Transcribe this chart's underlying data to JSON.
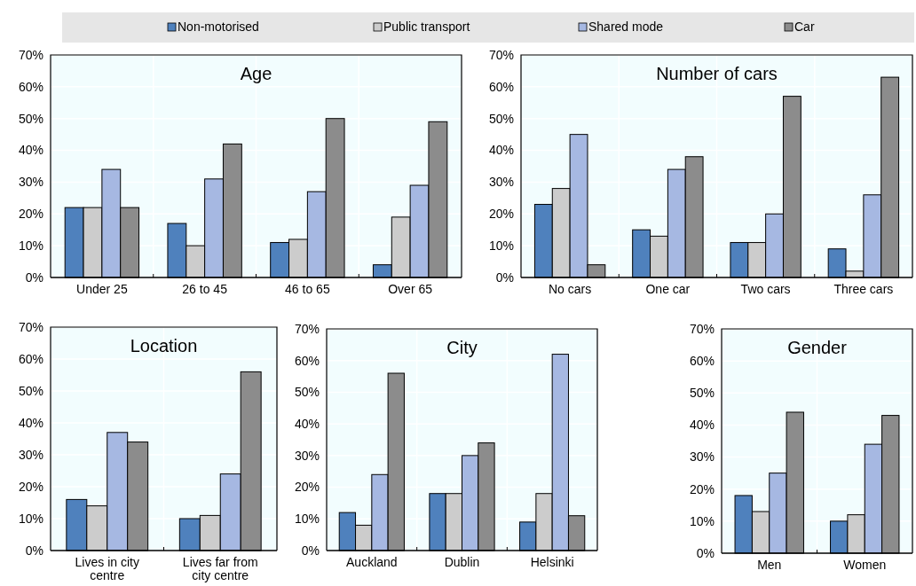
{
  "chart_data": [
    {
      "type": "bar",
      "title": "Age",
      "categories": [
        "Under 25",
        "26 to 45",
        "46 to 65",
        "Over 65"
      ],
      "legend": "top",
      "grid": true,
      "ylim": [
        0,
        70
      ],
      "yticks": [
        {
          "value": 0,
          "label": "0%"
        },
        {
          "value": 10,
          "label": "10%"
        },
        {
          "value": 20,
          "label": "20%"
        },
        {
          "value": 30,
          "label": "30%"
        },
        {
          "value": 40,
          "label": "40%"
        },
        {
          "value": 50,
          "label": "50%"
        },
        {
          "value": 60,
          "label": "60%"
        },
        {
          "value": 70,
          "label": "70%"
        }
      ],
      "series": [
        {
          "name": "Non-motorised",
          "color": "#4f81bd",
          "values": [
            22,
            17,
            11,
            4
          ]
        },
        {
          "name": "Public transport",
          "color": "#cccccc",
          "values": [
            22,
            10,
            12,
            19
          ]
        },
        {
          "name": "Shared mode",
          "color": "#a6b8e2",
          "values": [
            34,
            31,
            27,
            29
          ]
        },
        {
          "name": "Car",
          "color": "#8c8c8c",
          "values": [
            22,
            42,
            50,
            49
          ]
        }
      ]
    },
    {
      "type": "bar",
      "title": "Number of cars",
      "categories": [
        "No cars",
        "One car",
        "Two cars",
        "Three cars"
      ],
      "grid": true,
      "ylim": [
        0,
        70
      ],
      "yticks": [
        {
          "value": 0,
          "label": "0%"
        },
        {
          "value": 10,
          "label": "10%"
        },
        {
          "value": 20,
          "label": "20%"
        },
        {
          "value": 30,
          "label": "30%"
        },
        {
          "value": 40,
          "label": "40%"
        },
        {
          "value": 50,
          "label": "50%"
        },
        {
          "value": 60,
          "label": "60%"
        },
        {
          "value": 70,
          "label": "70%"
        }
      ],
      "series": [
        {
          "color": "#4f81bd",
          "values": [
            23,
            15,
            11,
            9
          ]
        },
        {
          "color": "#cccccc",
          "values": [
            28,
            13,
            11,
            2
          ]
        },
        {
          "color": "#a6b8e2",
          "values": [
            45,
            34,
            20,
            26
          ]
        },
        {
          "color": "#8c8c8c",
          "values": [
            4,
            38,
            57,
            63
          ]
        }
      ]
    },
    {
      "type": "bar",
      "title": "Location",
      "categories": [
        "Lives in city centre",
        "Lives far from city centre"
      ],
      "grid": true,
      "ylim": [
        0,
        70
      ],
      "yticks": [
        {
          "value": 0,
          "label": "0%"
        },
        {
          "value": 10,
          "label": "10%"
        },
        {
          "value": 20,
          "label": "20%"
        },
        {
          "value": 30,
          "label": "30%"
        },
        {
          "value": 40,
          "label": "40%"
        },
        {
          "value": 50,
          "label": "50%"
        },
        {
          "value": 60,
          "label": "60%"
        },
        {
          "value": 70,
          "label": "70%"
        }
      ],
      "series": [
        {
          "color": "#4f81bd",
          "values": [
            16,
            10
          ]
        },
        {
          "color": "#cccccc",
          "values": [
            14,
            11
          ]
        },
        {
          "color": "#a6b8e2",
          "values": [
            37,
            24
          ]
        },
        {
          "color": "#8c8c8c",
          "values": [
            34,
            56
          ]
        }
      ]
    },
    {
      "type": "bar",
      "title": "City",
      "categories": [
        "Auckland",
        "Dublin",
        "Helsinki"
      ],
      "grid": true,
      "ylim": [
        0,
        70
      ],
      "yticks": [
        {
          "value": 0,
          "label": "0%"
        },
        {
          "value": 10,
          "label": "10%"
        },
        {
          "value": 20,
          "label": "20%"
        },
        {
          "value": 30,
          "label": "30%"
        },
        {
          "value": 40,
          "label": "40%"
        },
        {
          "value": 50,
          "label": "50%"
        },
        {
          "value": 60,
          "label": "60%"
        },
        {
          "value": 70,
          "label": "70%"
        }
      ],
      "series": [
        {
          "color": "#4f81bd",
          "values": [
            12,
            18,
            9
          ]
        },
        {
          "color": "#cccccc",
          "values": [
            8,
            18,
            18
          ]
        },
        {
          "color": "#a6b8e2",
          "values": [
            24,
            30,
            62
          ]
        },
        {
          "color": "#8c8c8c",
          "values": [
            56,
            34,
            11
          ]
        }
      ]
    },
    {
      "type": "bar",
      "title": "Gender",
      "categories": [
        "Men",
        "Women"
      ],
      "grid": true,
      "ylim": [
        0,
        70
      ],
      "yticks": [
        {
          "value": 0,
          "label": "0%"
        },
        {
          "value": 10,
          "label": "10%"
        },
        {
          "value": 20,
          "label": "20%"
        },
        {
          "value": 30,
          "label": "30%"
        },
        {
          "value": 40,
          "label": "40%"
        },
        {
          "value": 50,
          "label": "50%"
        },
        {
          "value": 60,
          "label": "60%"
        },
        {
          "value": 70,
          "label": "70%"
        }
      ],
      "series": [
        {
          "color": "#4f81bd",
          "values": [
            18,
            10
          ]
        },
        {
          "color": "#cccccc",
          "values": [
            13,
            12
          ]
        },
        {
          "color": "#a6b8e2",
          "values": [
            25,
            34
          ]
        },
        {
          "color": "#8c8c8c",
          "values": [
            44,
            43
          ]
        }
      ]
    }
  ]
}
